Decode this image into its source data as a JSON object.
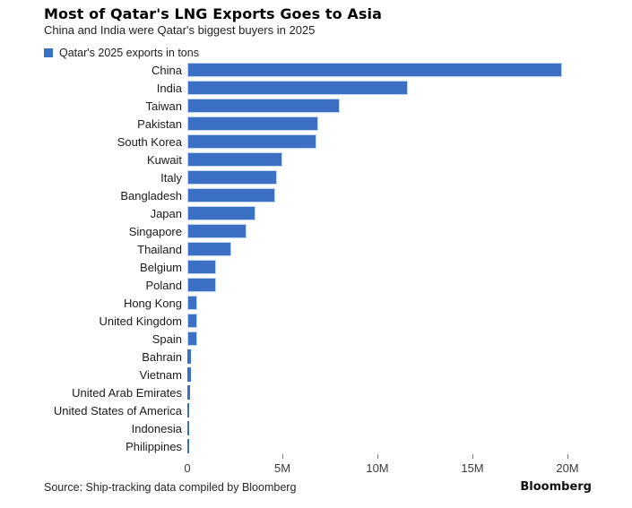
{
  "chart_data": {
    "type": "bar",
    "orientation": "horizontal",
    "title": "Most of Qatar's LNG Exports Goes to Asia",
    "subtitle": "China and India were Qatar's biggest buyers in 2025",
    "legend_label": "Qatar's 2025 exports in tons",
    "legend_position": "top-left",
    "categories": [
      "China",
      "India",
      "Taiwan",
      "Pakistan",
      "South Korea",
      "Kuwait",
      "Italy",
      "Bangladesh",
      "Japan",
      "Singapore",
      "Thailand",
      "Belgium",
      "Poland",
      "Hong Kong",
      "United Kingdom",
      "Spain",
      "Bahrain",
      "Vietnam",
      "United Arab Emirates",
      "United States of America",
      "Indonesia",
      "Philippines"
    ],
    "values": [
      19.7,
      11.6,
      8.0,
      6.9,
      6.8,
      5.0,
      4.7,
      4.6,
      3.6,
      3.1,
      2.3,
      1.5,
      1.5,
      0.5,
      0.5,
      0.5,
      0.2,
      0.2,
      0.15,
      0.1,
      0.1,
      0.1
    ],
    "values_unit": "millions of tons",
    "xlabel": "",
    "ylabel": "",
    "xlim": [
      0,
      21.5
    ],
    "x_ticks": [
      {
        "label": "0",
        "value": 0
      },
      {
        "label": "5M",
        "value": 5
      },
      {
        "label": "10M",
        "value": 10
      },
      {
        "label": "15M",
        "value": 15
      },
      {
        "label": "20M",
        "value": 20
      }
    ],
    "grid": false,
    "bar_color": "#3b70c4",
    "bar_border_color": "#bdd5f0"
  },
  "footer": {
    "source": "Source: Ship-tracking data compiled by Bloomberg",
    "brand": "Bloomberg"
  }
}
